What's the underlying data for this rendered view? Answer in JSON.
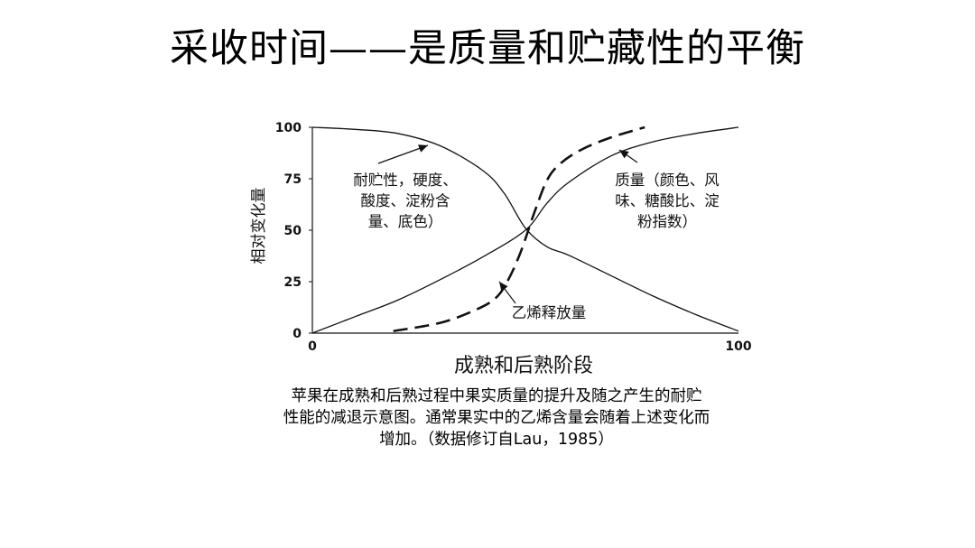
{
  "slide": {
    "title": "采收时间——是质量和贮藏性的平衡"
  },
  "chart_data": {
    "type": "line",
    "title": "",
    "xlabel": "成熟和后熟阶段",
    "ylabel": "相对变化量",
    "xlim": [
      0,
      100
    ],
    "ylim": [
      0,
      100
    ],
    "x_ticks": [
      "0",
      "100"
    ],
    "y_ticks": [
      "0",
      "25",
      "50",
      "75",
      "100"
    ],
    "grid": false,
    "series": [
      {
        "name": "耐贮性，硬度、酸度、淀粉含量、底色",
        "style": "solid",
        "x": [
          0,
          10,
          20,
          30,
          40,
          45,
          50,
          55,
          60,
          70,
          80,
          90,
          100
        ],
        "y": [
          100,
          99,
          97,
          91,
          79,
          68,
          51,
          42,
          38,
          28,
          18,
          9,
          1
        ]
      },
      {
        "name": "质量（颜色、风味、糖酸比、淀粉指数）",
        "style": "solid",
        "x": [
          0,
          10,
          20,
          30,
          40,
          50,
          55,
          60,
          70,
          80,
          90,
          100
        ],
        "y": [
          0,
          8,
          16,
          26,
          37,
          50,
          63,
          73,
          86,
          93,
          97,
          100
        ]
      },
      {
        "name": "乙烯释放量",
        "style": "dashed",
        "x": [
          19,
          30,
          38,
          43,
          46,
          49,
          52,
          55,
          58,
          63,
          70,
          78
        ],
        "y": [
          1,
          5,
          11,
          17,
          26,
          40,
          58,
          74,
          82,
          89,
          95,
          100
        ]
      }
    ],
    "annotations": [
      {
        "lines": [
          "耐贮性，硬度、",
          "酸度、淀粉含",
          "量、底色）"
        ],
        "target_series": 0
      },
      {
        "lines": [
          "质量（颜色、风",
          "味、糖酸比、淀",
          "粉指数）"
        ],
        "target_series": 1
      },
      {
        "lines": [
          "乙烯释放量"
        ],
        "target_series": 2
      }
    ]
  },
  "caption": {
    "lines": [
      "苹果在成熟和后熟过程中果实质量的提升及随之产生的耐贮",
      "性能的减退示意图。通常果实中的乙烯含量会随着上述变化而",
      "增加。（数据修订自Lau，1985）"
    ]
  }
}
